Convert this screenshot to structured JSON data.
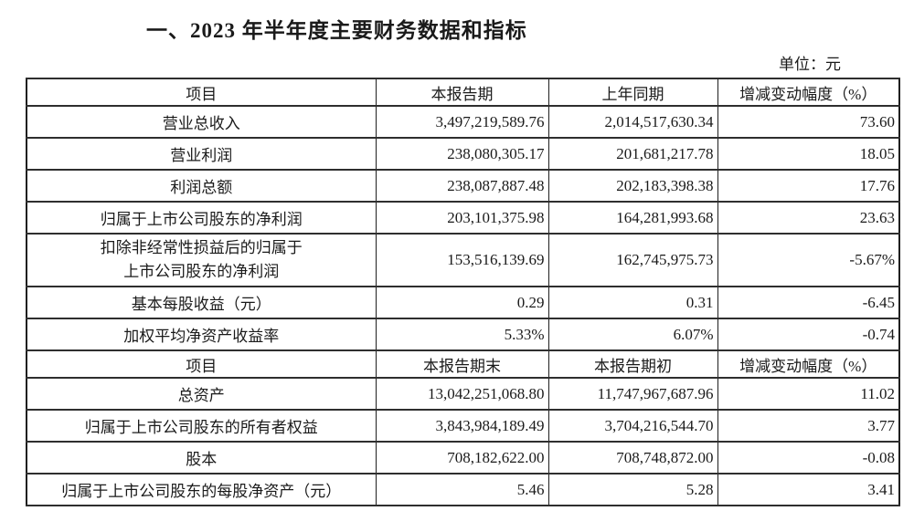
{
  "page": {
    "title": "一、2023 年半年度主要财务数据和指标",
    "unit_label": "单位：元"
  },
  "colors": {
    "background": "#ffffff",
    "text": "#1a1a1a",
    "border": "#1f1f1f"
  },
  "table1": {
    "headers": [
      "项目",
      "本报告期",
      "上年同期",
      "增减变动幅度（%）"
    ],
    "rows": [
      {
        "item": "营业总收入",
        "current": "3,497,219,589.76",
        "prior": "2,014,517,630.34",
        "change": "73.60"
      },
      {
        "item": "营业利润",
        "current": "238,080,305.17",
        "prior": "201,681,217.78",
        "change": "18.05"
      },
      {
        "item": "利润总额",
        "current": "238,087,887.48",
        "prior": "202,183,398.38",
        "change": "17.76"
      },
      {
        "item": "归属于上市公司股东的净利润",
        "current": "203,101,375.98",
        "prior": "164,281,993.68",
        "change": "23.63"
      },
      {
        "item_line1": "扣除非经常性损益后的归属于",
        "item_line2": "上市公司股东的净利润",
        "current": "153,516,139.69",
        "prior": "162,745,975.73",
        "change": "-5.67%"
      },
      {
        "item": "基本每股收益（元）",
        "current": "0.29",
        "prior": "0.31",
        "change": "-6.45"
      },
      {
        "item": "加权平均净资产收益率",
        "current": "5.33%",
        "prior": "6.07%",
        "change": "-0.74"
      }
    ]
  },
  "table2": {
    "headers": [
      "项目",
      "本报告期末",
      "本报告期初",
      "增减变动幅度（%）"
    ],
    "rows": [
      {
        "item": "总资产",
        "current": "13,042,251,068.80",
        "prior": "11,747,967,687.96",
        "change": "11.02"
      },
      {
        "item": "归属于上市公司股东的所有者权益",
        "current": "3,843,984,189.49",
        "prior": "3,704,216,544.70",
        "change": "3.77"
      },
      {
        "item": "股本",
        "current": "708,182,622.00",
        "prior": "708,748,872.00",
        "change": "-0.08"
      },
      {
        "item": "归属于上市公司股东的每股净资产（元）",
        "current": "5.46",
        "prior": "5.28",
        "change": "3.41"
      }
    ]
  }
}
